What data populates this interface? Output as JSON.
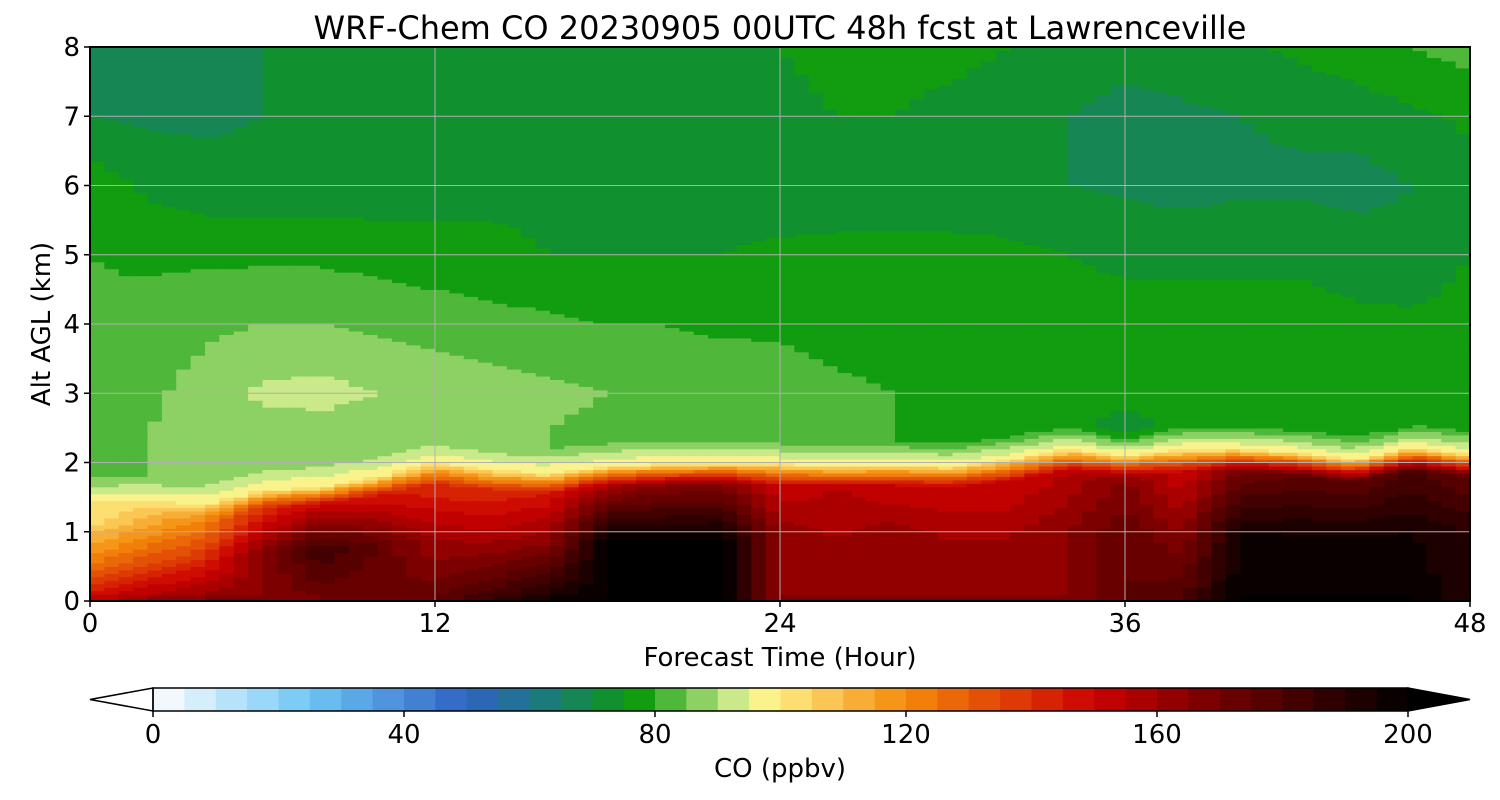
{
  "chart_data": {
    "type": "heatmap",
    "title": "WRF-Chem CO  20230905 00UTC 48h fcst at Lawrenceville",
    "xlabel": "Forecast Time (Hour)",
    "ylabel": "Alt AGL (km)",
    "xlim": [
      0,
      48
    ],
    "ylim": [
      0,
      8
    ],
    "x_ticks": [
      0,
      12,
      24,
      36,
      48
    ],
    "y_ticks": [
      0,
      1,
      2,
      3,
      4,
      5,
      6,
      7,
      8
    ],
    "grid": true,
    "z_variable": "CO",
    "z_units": "ppbv",
    "z_min": 0,
    "z_max": 200,
    "colorbar": {
      "label": "CO  (ppbv)",
      "ticks": [
        0,
        40,
        80,
        120,
        160,
        200
      ],
      "orientation": "horizontal",
      "placement": "bottom",
      "extend": "both",
      "levels_step": 5,
      "color_stops": [
        {
          "value": 0,
          "color": "#ffffff"
        },
        {
          "value": 25,
          "color": "#6ec6f5"
        },
        {
          "value": 50,
          "color": "#2f62c2"
        },
        {
          "value": 62,
          "color": "#1c7a7e"
        },
        {
          "value": 77,
          "color": "#0b9a0b"
        },
        {
          "value": 92,
          "color": "#c4e88a"
        },
        {
          "value": 98,
          "color": "#fff48c"
        },
        {
          "value": 120,
          "color": "#f58a0a"
        },
        {
          "value": 150,
          "color": "#cc0000"
        },
        {
          "value": 168,
          "color": "#7a0000"
        },
        {
          "value": 200,
          "color": "#000000"
        }
      ]
    },
    "field": {
      "x": [
        0,
        2,
        4,
        6,
        8,
        10,
        12,
        14,
        16,
        18,
        20,
        22,
        24,
        26,
        28,
        30,
        32,
        34,
        36,
        38,
        40,
        42,
        44,
        46,
        48
      ],
      "boundary_layer_top_km": [
        1.45,
        1.45,
        1.4,
        1.6,
        1.65,
        1.8,
        2.0,
        1.9,
        1.85,
        1.95,
        1.98,
        2.0,
        1.98,
        1.95,
        1.97,
        1.95,
        2.05,
        2.2,
        2.1,
        2.2,
        2.2,
        2.15,
        2.05,
        2.22,
        2.12
      ],
      "near_surface_ppbv": [
        150,
        160,
        165,
        165,
        170,
        170,
        175,
        185,
        195,
        200,
        200,
        200,
        165,
        165,
        165,
        165,
        165,
        165,
        175,
        180,
        200,
        200,
        200,
        200,
        190
      ],
      "mid_boundary_layer_ppbv": [
        120,
        130,
        140,
        165,
        185,
        175,
        160,
        160,
        165,
        200,
        200,
        200,
        165,
        160,
        165,
        160,
        160,
        165,
        175,
        165,
        195,
        195,
        195,
        195,
        190
      ],
      "upper_boundary_layer_ppbv": [
        100,
        110,
        120,
        140,
        150,
        145,
        140,
        140,
        145,
        160,
        165,
        165,
        150,
        155,
        150,
        150,
        150,
        155,
        165,
        150,
        170,
        175,
        175,
        180,
        175
      ],
      "free_troposphere_profile": {
        "altitude_km": [
          2.5,
          3.0,
          4.0,
          5.0,
          6.0,
          7.0,
          8.0
        ],
        "ppbv_by_time": [
          [
            84,
            82,
            81,
            80,
            78,
            70,
            68
          ],
          [
            85,
            84,
            82,
            79,
            74,
            69,
            68
          ],
          [
            86,
            87,
            84,
            79,
            72,
            69,
            69
          ],
          [
            88,
            91,
            85,
            79,
            72,
            70,
            70
          ],
          [
            88,
            92,
            85,
            79,
            72,
            70,
            70
          ],
          [
            87,
            90,
            84,
            78,
            72,
            70,
            71
          ],
          [
            86,
            88,
            83,
            77,
            73,
            71,
            72
          ],
          [
            86,
            87,
            82,
            76,
            74,
            72,
            72
          ],
          [
            85,
            86,
            81,
            75,
            74,
            73,
            73
          ],
          [
            84,
            85,
            80,
            75,
            74,
            73,
            73
          ],
          [
            84,
            84,
            80,
            75,
            73,
            73,
            74
          ],
          [
            83,
            84,
            79,
            75,
            73,
            74,
            75
          ],
          [
            82,
            83,
            79,
            76,
            72,
            74,
            75
          ],
          [
            81,
            81,
            78,
            76,
            73,
            75,
            76
          ],
          [
            80,
            80,
            78,
            76,
            73,
            75,
            76
          ],
          [
            79,
            79,
            77,
            76,
            73,
            74,
            76
          ],
          [
            79,
            78,
            77,
            76,
            72,
            73,
            75
          ],
          [
            78,
            77,
            77,
            75,
            70,
            70,
            74
          ],
          [
            72,
            77,
            77,
            74,
            69,
            68,
            72
          ],
          [
            78,
            77,
            77,
            74,
            68,
            69,
            73
          ],
          [
            78,
            77,
            77,
            74,
            69,
            70,
            74
          ],
          [
            78,
            77,
            77,
            74,
            69,
            71,
            76
          ],
          [
            78,
            77,
            76,
            73,
            68,
            72,
            78
          ],
          [
            78,
            77,
            76,
            72,
            70,
            74,
            80
          ],
          [
            79,
            78,
            77,
            75,
            73,
            76,
            82
          ]
        ]
      }
    }
  }
}
